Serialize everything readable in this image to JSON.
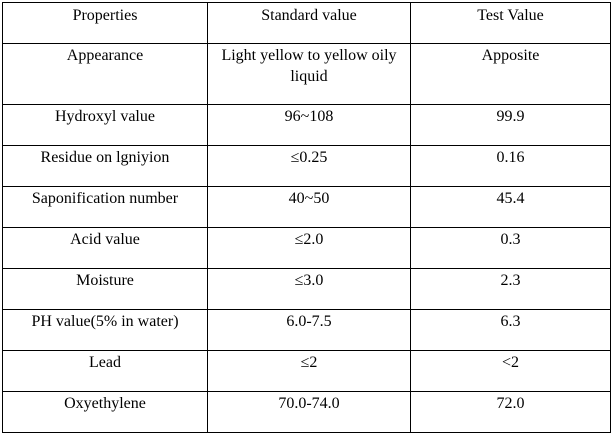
{
  "table": {
    "headers": [
      "Properties",
      "Standard value",
      "Test Value"
    ],
    "rows": [
      [
        "Appearance",
        "Light yellow to yellow oily liquid",
        "Apposite"
      ],
      [
        "Hydroxyl value",
        "96~108",
        "99.9"
      ],
      [
        "Residue on lgniyion",
        "≤0.25",
        "0.16"
      ],
      [
        "Saponification number",
        "40~50",
        "45.4"
      ],
      [
        "Acid value",
        "≤2.0",
        "0.3"
      ],
      [
        "Moisture",
        "≤3.0",
        "2.3"
      ],
      [
        "PH value(5% in water)",
        "6.0-7.5",
        "6.3"
      ],
      [
        "Lead",
        "≤2",
        "<2"
      ],
      [
        "Oxyethylene",
        "70.0-74.0",
        "72.0"
      ]
    ]
  }
}
